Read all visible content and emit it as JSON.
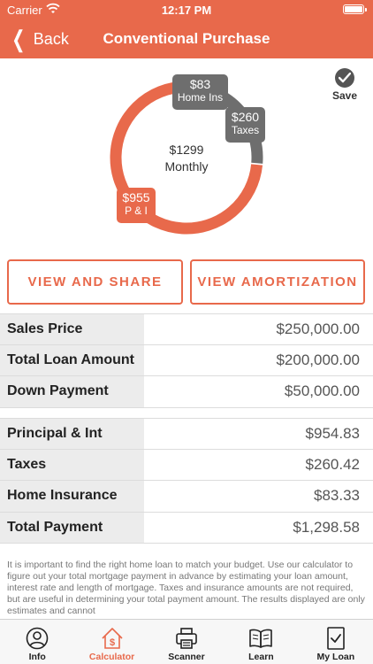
{
  "status_bar": {
    "carrier": "Carrier",
    "time": "12:17 PM"
  },
  "nav": {
    "back_label": "Back",
    "title": "Conventional Purchase"
  },
  "chart_data": {
    "type": "pie",
    "center": {
      "amount": "$1299",
      "label": "Monthly"
    },
    "slices": [
      {
        "name": "P & I",
        "value": 955,
        "label": "$955",
        "color": "#e8694b"
      },
      {
        "name": "Taxes",
        "value": 260,
        "label": "$260",
        "color": "#6e6e6e"
      },
      {
        "name": "Home Ins",
        "value": 83,
        "label": "$83",
        "color": "#6e6e6e"
      }
    ]
  },
  "save": {
    "label": "Save"
  },
  "buttons": {
    "share": "VIEW AND SHARE",
    "amortization": "VIEW AMORTIZATION"
  },
  "loan_table": [
    {
      "label": "Sales Price",
      "value": "$250,000.00"
    },
    {
      "label": "Total Loan Amount",
      "value": "$200,000.00"
    },
    {
      "label": "Down Payment",
      "value": "$50,000.00"
    }
  ],
  "payment_table": [
    {
      "label": "Principal & Int",
      "value": "$954.83"
    },
    {
      "label": "Taxes",
      "value": "$260.42"
    },
    {
      "label": "Home Insurance",
      "value": "$83.33"
    },
    {
      "label": "Total Payment",
      "value": "$1,298.58"
    }
  ],
  "disclaimer": "It is important to find the right home loan to match your budget. Use our calculator to figure out your total mortgage payment in advance by estimating your loan amount, interest rate and length of mortgage. Taxes and insurance amounts are not required, but are useful in determining your total payment amount.  The results displayed are only estimates and cannot",
  "tabs": [
    {
      "label": "Info",
      "icon": "person-icon",
      "active": false
    },
    {
      "label": "Calculator",
      "icon": "house-dollar-icon",
      "active": true
    },
    {
      "label": "Scanner",
      "icon": "printer-icon",
      "active": false
    },
    {
      "label": "Learn",
      "icon": "book-icon",
      "active": false
    },
    {
      "label": "My Loan",
      "icon": "document-check-icon",
      "active": false
    }
  ],
  "colors": {
    "accent": "#e8694b",
    "secondary": "#6e6e6e"
  }
}
